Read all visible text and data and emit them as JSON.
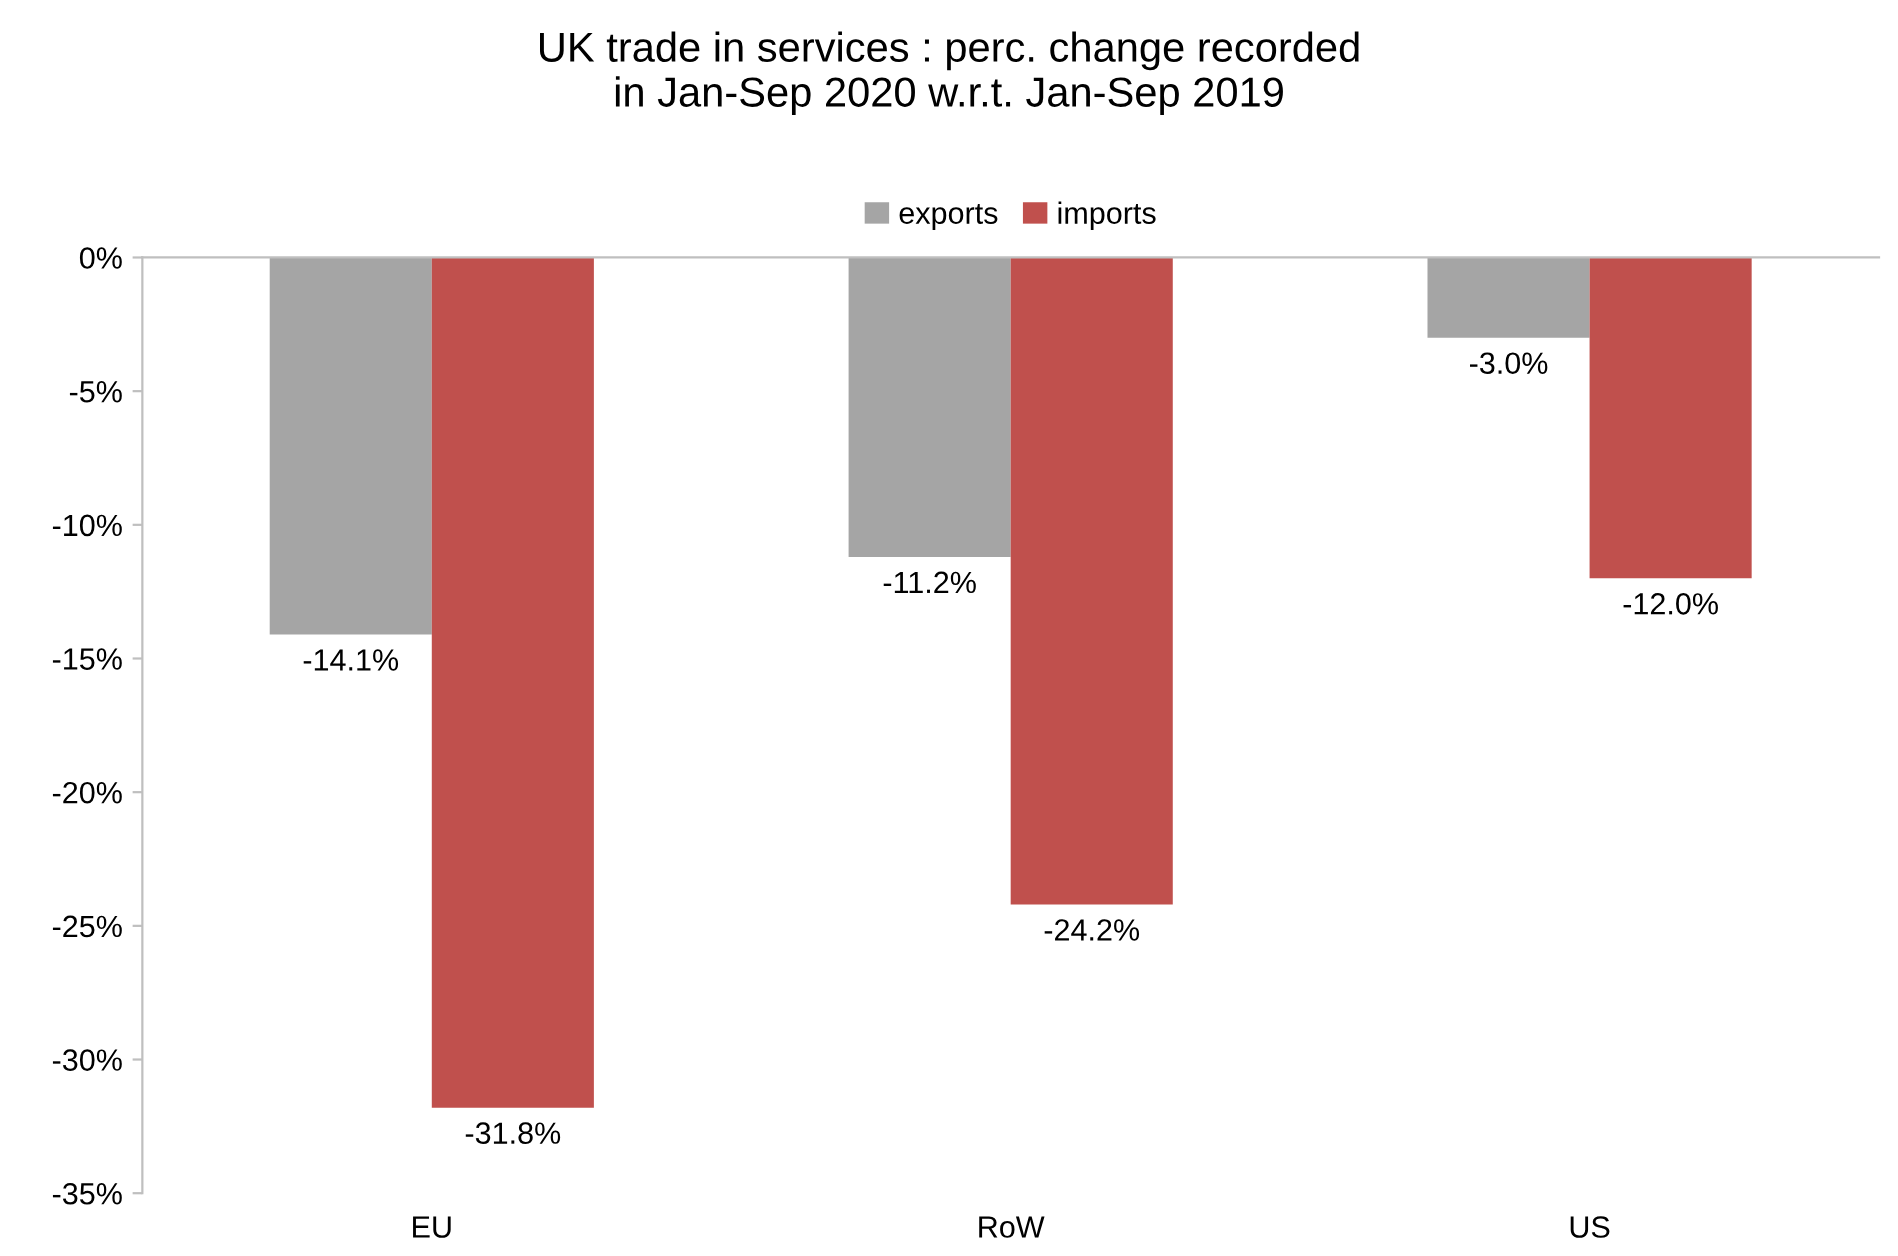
{
  "chart_data": {
    "type": "bar",
    "title": "UK trade in services : perc. change recorded\nin Jan-Sep 2020 w.r.t. Jan-Sep 2019",
    "categories": [
      "EU",
      "RoW",
      "US"
    ],
    "series": [
      {
        "name": "exports",
        "color": "#a5a5a5",
        "values": [
          -14.1,
          -11.2,
          -3.0
        ],
        "value_labels": [
          "-14.1%",
          "-11.2%",
          "-3.0%"
        ]
      },
      {
        "name": "imports",
        "color": "#c0504d",
        "values": [
          -31.8,
          -24.2,
          -12.0
        ],
        "value_labels": [
          "-31.8%",
          "-24.2%",
          "-12.0%"
        ]
      }
    ],
    "ylim": [
      -35,
      0
    ],
    "yticks": [
      {
        "value": 0,
        "label": "0%"
      },
      {
        "value": -5,
        "label": "-5%"
      },
      {
        "value": -10,
        "label": "-10%"
      },
      {
        "value": -15,
        "label": "-15%"
      },
      {
        "value": -20,
        "label": "-20%"
      },
      {
        "value": -25,
        "label": "-25%"
      },
      {
        "value": -30,
        "label": "-30%"
      },
      {
        "value": -35,
        "label": "-35%"
      }
    ],
    "legend": "top",
    "grid": false
  }
}
